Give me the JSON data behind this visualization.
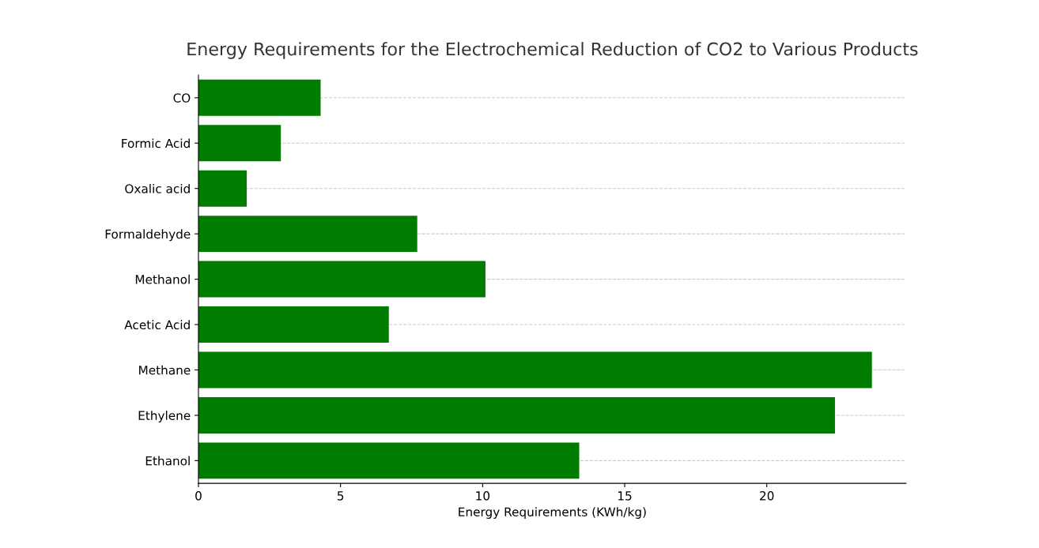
{
  "chart_data": {
    "type": "bar",
    "orientation": "horizontal",
    "title": "Energy Requirements for the Electrochemical Reduction of CO2 to Various Products",
    "xlabel": "Energy Requirements (KWh/kg)",
    "categories": [
      "CO",
      "Formic Acid",
      "Oxalic acid",
      "Formaldehyde",
      "Methanol",
      "Acetic Acid",
      "Methane",
      "Ethylene",
      "Ethanol"
    ],
    "values": [
      4.3,
      2.9,
      1.7,
      7.7,
      10.1,
      6.7,
      23.7,
      22.4,
      13.4
    ],
    "color": "#007c00",
    "xlim": [
      0,
      24.9
    ],
    "xticks": [
      0,
      5,
      10,
      15,
      20
    ],
    "grid": "y"
  }
}
